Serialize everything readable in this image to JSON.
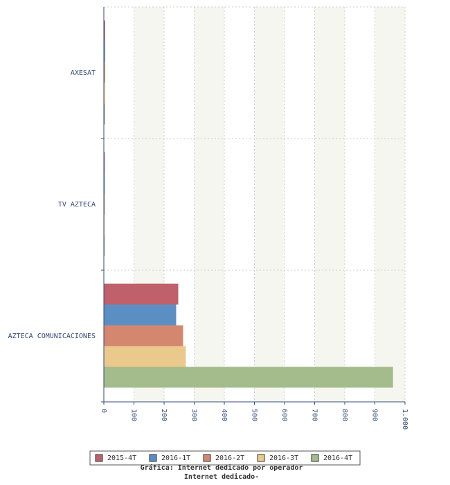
{
  "chart_data": {
    "type": "hbar",
    "categories": [
      "AXESAT",
      "TV AZTECA",
      "AZTECA COMUNICACIONES"
    ],
    "series": [
      {
        "name": "2015-4T",
        "color": "#c0606a",
        "values": [
          3,
          2,
          246
        ]
      },
      {
        "name": "2016-1T",
        "color": "#5b8fc4",
        "values": [
          3,
          2,
          239
        ]
      },
      {
        "name": "2016-2T",
        "color": "#d4876e",
        "values": [
          3,
          2,
          262
        ]
      },
      {
        "name": "2016-3T",
        "color": "#ebc98c",
        "values": [
          3,
          2,
          271
        ]
      },
      {
        "name": "2016-4T",
        "color": "#a4bb8c",
        "values": [
          3,
          2,
          959
        ]
      }
    ],
    "xlim": [
      0,
      1000
    ],
    "xticks": [
      0,
      100,
      200,
      300,
      400,
      500,
      600,
      700,
      800,
      900,
      {
        "value": 1000,
        "label": "1.000"
      }
    ],
    "grid": true,
    "caption": "Gráfica: Internet dedicado por operador",
    "subtitle": "Internet dedicado-"
  }
}
